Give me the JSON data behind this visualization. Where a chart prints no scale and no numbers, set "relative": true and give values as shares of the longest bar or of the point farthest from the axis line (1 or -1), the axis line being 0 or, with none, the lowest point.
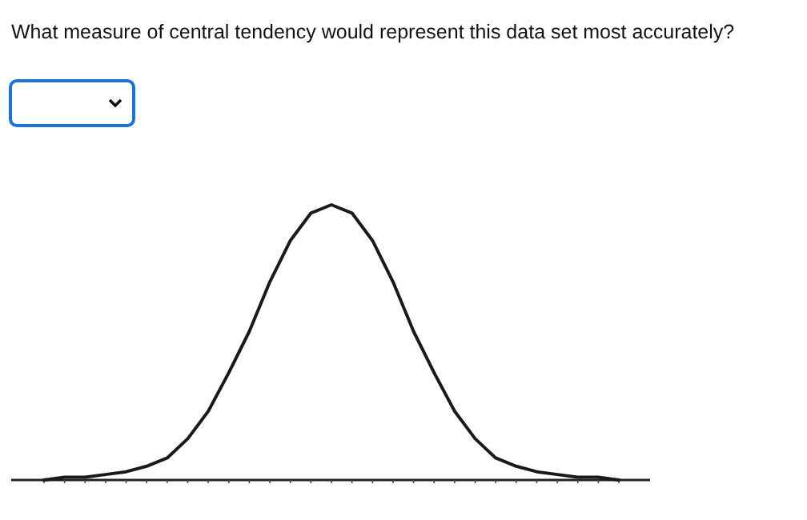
{
  "chart_data": {
    "type": "line",
    "title": "What measure of central tendency would represent this data set most accurately?",
    "relative": true,
    "grid": false,
    "marker": "none",
    "line_style": "solid",
    "categories": [
      null,
      null,
      null,
      null,
      null,
      null,
      null,
      null,
      null,
      null,
      null,
      null,
      null,
      null,
      null,
      null,
      null,
      null,
      null,
      null,
      null,
      null,
      null,
      null,
      null,
      null,
      null,
      null,
      null
    ],
    "series": [
      {
        "color": "#1a1a1a",
        "values": [
          0,
          0.01,
          0.01,
          0.02,
          0.03,
          0.05,
          0.08,
          0.15,
          0.25,
          0.39,
          0.54,
          0.72,
          0.87,
          0.97,
          1,
          0.97,
          0.87,
          0.72,
          0.54,
          0.39,
          0.25,
          0.15,
          0.08,
          0.05,
          0.03,
          0.02,
          0.01,
          0.01,
          0
        ]
      }
    ]
  }
}
